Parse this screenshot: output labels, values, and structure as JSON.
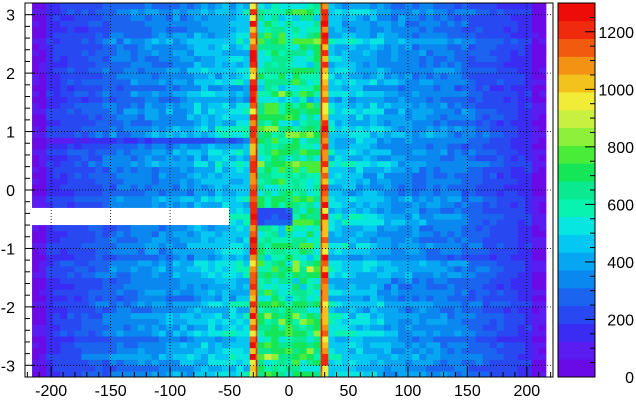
{
  "chart_data": {
    "type": "heatmap",
    "title": "",
    "xlabel": "",
    "ylabel": "",
    "xlim": [
      -222,
      222
    ],
    "ylim": [
      -3.2,
      3.2
    ],
    "grid": true,
    "x_ticks": [
      -200,
      -150,
      -100,
      -50,
      0,
      50,
      100,
      150,
      200
    ],
    "y_ticks": [
      -3,
      -2,
      -1,
      0,
      1,
      2,
      3
    ],
    "colorbar": {
      "min": 0,
      "max": 1300,
      "ticks": [
        0,
        200,
        400,
        600,
        800,
        1000,
        1200
      ],
      "levels": [
        "#6a0ae6",
        "#5a1cf0",
        "#3b2cf4",
        "#2848f2",
        "#1b64f0",
        "#0a88f0",
        "#07a6f2",
        "#05c8f2",
        "#07e6e0",
        "#08f2b0",
        "#0ae890",
        "#14e658",
        "#4aec3a",
        "#8ef03a",
        "#c8f040",
        "#f0ec38",
        "#f4c21c",
        "#f49214",
        "#f25a10",
        "#f02a0c",
        "#ee0c08"
      ]
    },
    "regions": [
      {
        "name": "empty-edge-bins",
        "x": [
          -222,
          -215
        ],
        "value": 0
      },
      {
        "name": "low-edge-band-left",
        "x": [
          -215,
          -202
        ],
        "approx_value": 60
      },
      {
        "name": "outer-band-left",
        "x": [
          -202,
          -150
        ],
        "approx_value": 250
      },
      {
        "name": "mid-band-left",
        "x": [
          -150,
          -80
        ],
        "approx_value": 380
      },
      {
        "name": "inner-band-left",
        "x": [
          -80,
          -33
        ],
        "approx_value": 480
      },
      {
        "name": "ring-peak-left",
        "x": [
          -33,
          -28
        ],
        "approx_value": 1200
      },
      {
        "name": "core-region",
        "x": [
          -28,
          28
        ],
        "approx_value": 620
      },
      {
        "name": "ring-peak-right",
        "x": [
          28,
          33
        ],
        "approx_value": 1200
      },
      {
        "name": "inner-band-right",
        "x": [
          33,
          80
        ],
        "approx_value": 480
      },
      {
        "name": "mid-band-right",
        "x": [
          80,
          150
        ],
        "approx_value": 380
      },
      {
        "name": "outer-band-right",
        "x": [
          150,
          202
        ],
        "approx_value": 250
      },
      {
        "name": "low-edge-band-right",
        "x": [
          202,
          215
        ],
        "approx_value": 60
      },
      {
        "name": "dead-zone",
        "x": [
          -222,
          -50
        ],
        "y": [
          -0.6,
          -0.25
        ],
        "value": 0
      },
      {
        "name": "reduced-strip",
        "x": [
          -25,
          0
        ],
        "y": [
          -0.6,
          -0.25
        ],
        "approx_value": 250
      }
    ]
  }
}
